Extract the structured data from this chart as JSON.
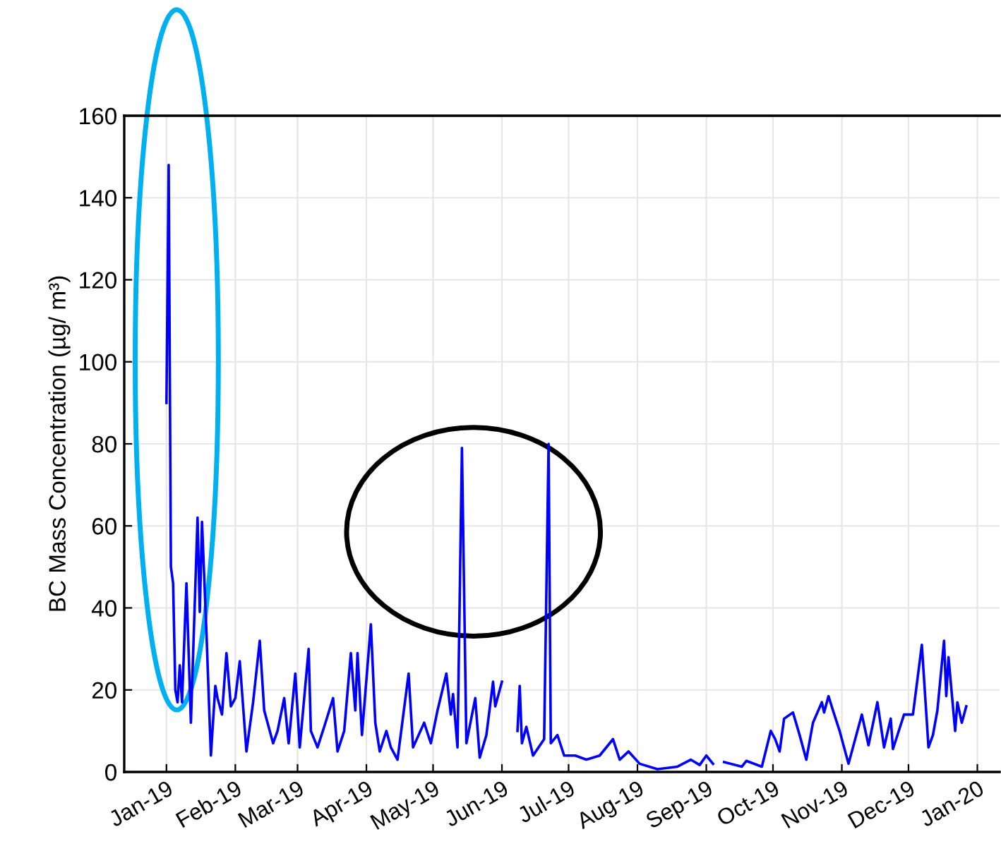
{
  "chart_data": {
    "type": "line",
    "ylabel": "BC Mass Concentration (µg/ m³)",
    "xlim": [
      "2018-12-13",
      "2020-01-11"
    ],
    "ylim": [
      0,
      160
    ],
    "yticks": [
      0,
      20,
      40,
      60,
      80,
      100,
      120,
      140,
      160
    ],
    "xticks": [
      {
        "value": "2019-01-01",
        "label": "Jan-19"
      },
      {
        "value": "2019-02-01",
        "label": "Feb-19"
      },
      {
        "value": "2019-03-01",
        "label": "Mar-19"
      },
      {
        "value": "2019-04-01",
        "label": "Apr-19"
      },
      {
        "value": "2019-05-01",
        "label": "May-19"
      },
      {
        "value": "2019-06-01",
        "label": "Jun-19"
      },
      {
        "value": "2019-07-01",
        "label": "Jul-19"
      },
      {
        "value": "2019-08-01",
        "label": "Aug-19"
      },
      {
        "value": "2019-09-01",
        "label": "Sep-19"
      },
      {
        "value": "2019-10-01",
        "label": "Oct-19"
      },
      {
        "value": "2019-11-01",
        "label": "Nov-19"
      },
      {
        "value": "2019-12-01",
        "label": "Dec-19"
      },
      {
        "value": "2020-01-01",
        "label": "Jan-20"
      }
    ],
    "grid": true,
    "x": [
      "2019-01-01",
      "2019-01-02",
      "2019-01-03",
      "2019-01-04",
      "2019-01-05",
      "2019-01-06",
      "2019-01-07",
      "2019-01-08",
      "2019-01-10",
      "2019-01-12",
      "2019-01-15",
      "2019-01-16",
      "2019-01-17",
      "2019-01-19",
      "2019-01-21",
      "2019-01-23",
      "2019-01-24",
      "2019-01-26",
      "2019-01-28",
      "2019-01-30",
      "2019-02-01",
      "2019-02-03",
      "2019-02-06",
      "2019-02-09",
      "2019-02-12",
      "2019-02-14",
      "2019-02-18",
      "2019-02-20",
      "2019-02-23",
      "2019-02-25",
      "2019-02-28",
      "2019-03-02",
      "2019-03-06",
      "2019-03-07",
      "2019-03-10",
      "2019-03-13",
      "2019-03-17",
      "2019-03-19",
      "2019-03-22",
      "2019-03-25",
      "2019-03-27",
      "2019-03-28",
      "2019-03-30",
      "2019-04-03",
      "2019-04-05",
      "2019-04-07",
      "2019-04-10",
      "2019-04-12",
      "2019-04-15",
      "2019-04-20",
      "2019-04-22",
      "2019-04-27",
      "2019-04-30",
      "2019-05-03",
      "2019-05-07",
      "2019-05-09",
      "2019-05-10",
      "2019-05-12",
      "2019-05-14",
      "2019-05-16",
      "2019-05-20",
      "2019-05-22",
      "2019-05-25",
      "2019-05-28",
      "2019-05-29",
      "2019-06-01",
      "2019-06-04",
      "2019-06-08",
      "2019-06-09",
      "2019-06-10",
      "2019-06-12",
      "2019-06-15",
      "2019-06-20",
      "2019-06-22",
      "2019-06-23",
      "2019-06-26",
      "2019-06-29",
      "2019-07-04",
      "2019-07-09",
      "2019-07-15",
      "2019-07-21",
      "2019-07-24",
      "2019-07-28",
      "2019-08-02",
      "2019-08-10",
      "2019-08-19",
      "2019-08-25",
      "2019-08-29",
      "2019-09-01",
      "2019-09-04",
      "2019-09-06",
      "2019-09-09",
      "2019-09-17",
      "2019-09-19",
      "2019-09-26",
      "2019-09-30",
      "2019-10-02",
      "2019-10-04",
      "2019-10-06",
      "2019-10-10",
      "2019-10-13",
      "2019-10-16",
      "2019-10-19",
      "2019-10-23",
      "2019-10-24",
      "2019-10-26",
      "2019-10-28",
      "2019-10-31",
      "2019-11-04",
      "2019-11-10",
      "2019-11-13",
      "2019-11-17",
      "2019-11-20",
      "2019-11-23",
      "2019-11-24",
      "2019-11-29",
      "2019-12-03",
      "2019-12-07",
      "2019-12-10",
      "2019-12-12",
      "2019-12-14",
      "2019-12-17",
      "2019-12-18",
      "2019-12-19",
      "2019-12-22",
      "2019-12-23",
      "2019-12-25",
      "2019-12-27"
    ],
    "series": [
      {
        "color": "#0000ff",
        "values": [
          90,
          148,
          50,
          46,
          20,
          17,
          26,
          17,
          46,
          12,
          62,
          39,
          61,
          34,
          4,
          21,
          18,
          14,
          29,
          16,
          18,
          27,
          5,
          17,
          32,
          15,
          7,
          10,
          18,
          7,
          24,
          6,
          30,
          10,
          6,
          11,
          18,
          5,
          10,
          29,
          15,
          29,
          9,
          36,
          12,
          5,
          10,
          6,
          3,
          24,
          6,
          12,
          7,
          15,
          24,
          14,
          19,
          6,
          79,
          7,
          18,
          3.5,
          9,
          22,
          16,
          22,
          null,
          10,
          21,
          7,
          11,
          4,
          8,
          80,
          7,
          9,
          4,
          4,
          3,
          4,
          8,
          3,
          5,
          2,
          0.7,
          1.3,
          3,
          1.7,
          4,
          2,
          null,
          2.4,
          1.3,
          2.7,
          1.3,
          10,
          8,
          5,
          13,
          14.5,
          9,
          3,
          12,
          17,
          14.5,
          18.5,
          15,
          10,
          2,
          14,
          6.5,
          17,
          6,
          13,
          5.6,
          14,
          14,
          31,
          6,
          9,
          15,
          32,
          18.5,
          28,
          10,
          17,
          12,
          16
        ]
      }
    ]
  }
}
